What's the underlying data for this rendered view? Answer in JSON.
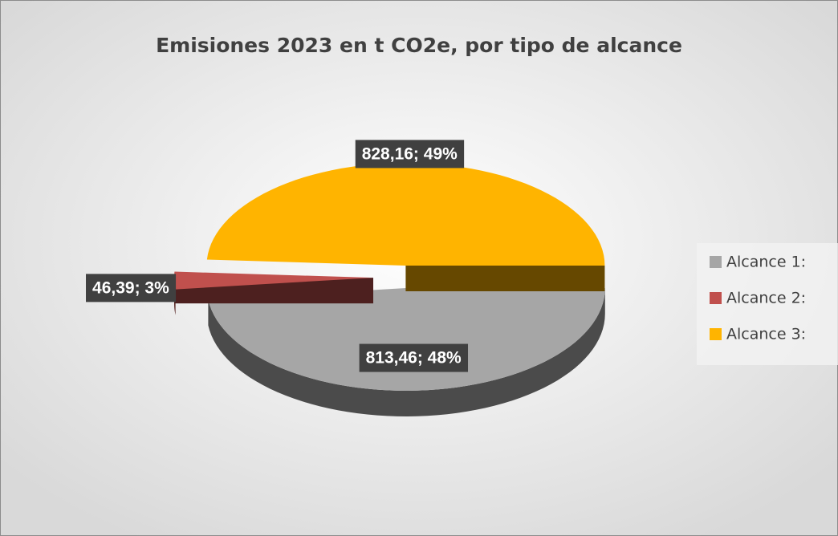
{
  "chart_data": {
    "type": "pie",
    "title": "Emisiones 2023 en t CO2e, por tipo de alcance",
    "categories": [
      "Alcance 1:",
      "Alcance 2:",
      "Alcance 3:"
    ],
    "values": [
      813.46,
      46.39,
      828.16
    ],
    "value_labels": [
      "813,46; 48%",
      "46,39; 3%",
      "828,16; 49%"
    ],
    "colors": [
      "#a6a6a6",
      "#c0504d",
      "#ffb400"
    ],
    "legend": "right"
  }
}
